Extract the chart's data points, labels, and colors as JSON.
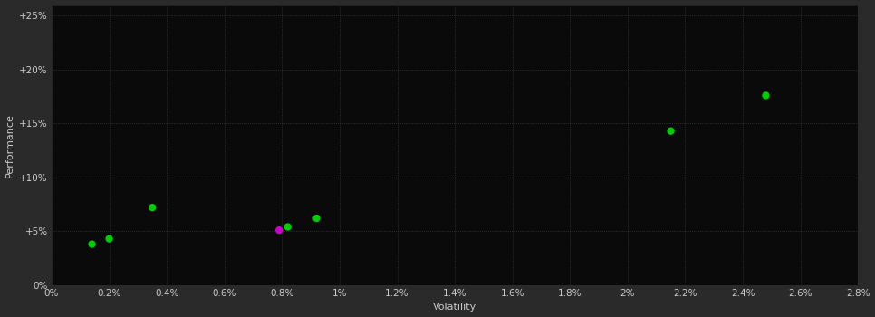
{
  "xlabel": "Volatility",
  "ylabel": "Performance",
  "background_color": "#2a2a2a",
  "plot_bg_color": "#0a0a0a",
  "grid_color": "#3a3a3a",
  "text_color": "#cccccc",
  "xlim": [
    0.0,
    0.028
  ],
  "ylim": [
    0.0,
    0.26
  ],
  "x_ticks": [
    0.0,
    0.002,
    0.004,
    0.006,
    0.008,
    0.01,
    0.012,
    0.014,
    0.016,
    0.018,
    0.02,
    0.022,
    0.024,
    0.026,
    0.028
  ],
  "x_tick_labels": [
    "0%",
    "0.2%",
    "0.4%",
    "0.6%",
    "0.8%",
    "1%",
    "1.2%",
    "1.4%",
    "1.6%",
    "1.8%",
    "2%",
    "2.2%",
    "2.4%",
    "2.6%",
    "2.8%"
  ],
  "y_ticks": [
    0.0,
    0.05,
    0.1,
    0.15,
    0.2,
    0.25
  ],
  "y_tick_labels": [
    "0%",
    "+5%",
    "+10%",
    "+15%",
    "+20%",
    "+25%"
  ],
  "green_points": [
    [
      0.0014,
      0.038
    ],
    [
      0.002,
      0.043
    ],
    [
      0.0035,
      0.072
    ],
    [
      0.0082,
      0.054
    ],
    [
      0.0092,
      0.062
    ],
    [
      0.0215,
      0.143
    ],
    [
      0.0248,
      0.176
    ]
  ],
  "magenta_points": [
    [
      0.0079,
      0.051
    ]
  ],
  "green_color": "#00cc00",
  "magenta_color": "#cc00cc",
  "marker_size": 6
}
